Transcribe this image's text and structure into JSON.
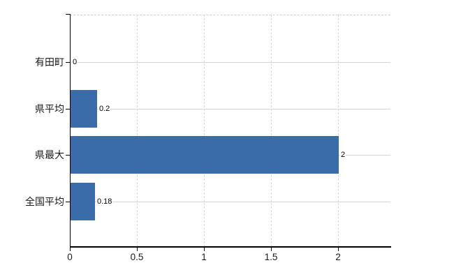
{
  "chart_data": {
    "type": "bar",
    "orientation": "horizontal",
    "title": "",
    "categories": [
      "有田町",
      "県平均",
      "県最大",
      "全国平均"
    ],
    "values": [
      0,
      0.2,
      2,
      0.18
    ],
    "value_labels": [
      "0",
      "0.2",
      "2",
      "0.18"
    ],
    "series": [
      {
        "name": "",
        "values": [
          0,
          0.2,
          2,
          0.18
        ]
      }
    ],
    "x_axis": {
      "ticks": [
        0,
        0.5,
        1,
        1.5,
        2
      ],
      "tick_labels": [
        "0",
        "0.5",
        "1",
        "1.5",
        "2"
      ],
      "range": [
        0,
        2.39
      ]
    },
    "y_axis": {
      "tick_marks_at_category_centers": true
    },
    "legend": "none",
    "grid": {
      "vertical_style": "dashed",
      "horizontal_style": "solid",
      "top_border_style": "dashed"
    },
    "colors": {
      "bar": "#3b6caa",
      "axis": "#000000",
      "grid_vertical": "#d9d9d9",
      "grid_horizontal": "#d2d8d2",
      "plot_top_border": "#cfcfcf",
      "label_text": "#1a1a1a",
      "background": "#ffffff"
    }
  }
}
